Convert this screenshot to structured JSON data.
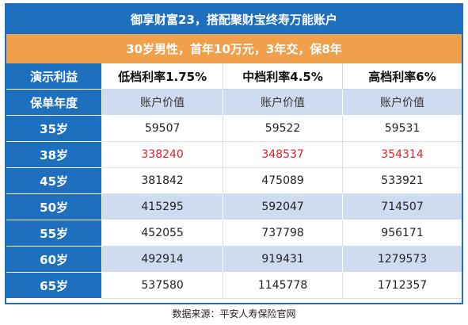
{
  "title": "御享财富23，搭配聚财宝终寿万能账户",
  "subtitle": "30岁男性，首年10万元，3年交，保8年",
  "table": {
    "header": [
      "演示利益",
      "低档利率1.75%",
      "中档利率4.5%",
      "高档利率6%"
    ],
    "subheader": [
      "保单年度",
      "账户价值",
      "账户价值",
      "账户价值"
    ],
    "rows": [
      [
        "35岁",
        "59507",
        "59522",
        "59531"
      ],
      [
        "38岁",
        "338240",
        "348537",
        "354314"
      ],
      [
        "45岁",
        "381842",
        "475089",
        "533921"
      ],
      [
        "50岁",
        "415295",
        "592047",
        "714507"
      ],
      [
        "55岁",
        "452055",
        "737798",
        "956171"
      ],
      [
        "60岁",
        "492914",
        "919431",
        "1279573"
      ],
      [
        "65岁",
        "537580",
        "1145778",
        "1712357"
      ]
    ]
  },
  "source": "数据来源：平安人寿保险官网",
  "colors": {
    "blue": "#1f6fbf",
    "orange": "#f0a04b",
    "light_blue": "#cfdcef",
    "highlight_red": "#e8202a"
  }
}
